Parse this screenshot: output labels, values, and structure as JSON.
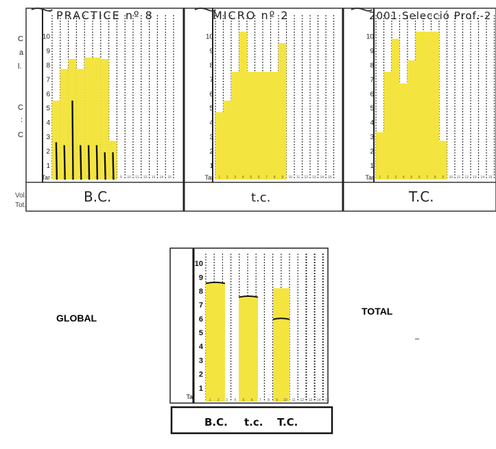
{
  "side_labels": [
    "C",
    "a",
    "l.",
    "C",
    ":",
    "C"
  ],
  "row_labels": [
    "Vol.",
    "Tot."
  ],
  "tick_labels": [
    "1",
    "2",
    "3",
    "4",
    "5",
    "6",
    "7",
    "8",
    "9",
    "10"
  ],
  "axis_label": "Tar",
  "x_tick_labels": [
    "1",
    "2",
    "3",
    "4",
    "5",
    "6",
    "7",
    "8",
    "9",
    "10",
    "11",
    "12",
    "13",
    "14",
    "15"
  ],
  "bottom_label": {
    "global": "GLOBAL",
    "total": "TOTAL"
  },
  "colors": {
    "fill": "#f4e440",
    "marker": "#111111",
    "grid": "#222222"
  },
  "chart_data": [
    {
      "type": "bar",
      "title": "PRACTICE nº 8",
      "footer": "B.C.",
      "ylim": [
        0,
        10.5
      ],
      "x": [
        1,
        2,
        3,
        4,
        5,
        6,
        7,
        8,
        9,
        10,
        11,
        12,
        13,
        14,
        15
      ],
      "series": [
        {
          "values": [
            5.5,
            7.7,
            8.4,
            7.7,
            8.5,
            8.5,
            8.4,
            2.7,
            null,
            null,
            null,
            null,
            null,
            null,
            null
          ]
        },
        {
          "values": [
            2.6,
            2.4,
            5.5,
            2.4,
            2.4,
            2.4,
            1.9,
            1.9,
            null,
            null,
            null,
            null,
            null,
            null,
            null
          ]
        }
      ],
      "grid": true
    },
    {
      "type": "bar",
      "title": "MICRO nº 2",
      "footer": "t.c.",
      "ylim": [
        0,
        10.5
      ],
      "x": [
        1,
        2,
        3,
        4,
        5,
        6,
        7,
        8,
        9,
        10,
        11,
        12,
        13,
        14,
        15
      ],
      "series": [
        {
          "values": [
            4.7,
            5.5,
            7.5,
            10.3,
            7.5,
            7.5,
            7.5,
            7.5,
            9.5,
            null,
            null,
            null,
            null,
            null,
            null
          ]
        }
      ],
      "grid": true
    },
    {
      "type": "bar",
      "title": "2001 Selecció Prof.-2",
      "footer": "T.C.",
      "ylim": [
        0,
        10.5
      ],
      "x": [
        1,
        2,
        3,
        4,
        5,
        6,
        7,
        8,
        9,
        10,
        11,
        12,
        13,
        14,
        15
      ],
      "series": [
        {
          "values": [
            3.3,
            7.5,
            9.8,
            6.7,
            8.3,
            10.3,
            10.3,
            10.3,
            2.7,
            null,
            null,
            null,
            null,
            null,
            null
          ]
        }
      ],
      "grid": true
    },
    {
      "type": "bar",
      "title": "",
      "footer": "",
      "ylim": [
        0,
        10.5
      ],
      "categories": [
        "B.C.",
        "t.c.",
        "T.C."
      ],
      "series": [
        {
          "values": [
            8.6,
            7.6,
            8.2
          ]
        }
      ],
      "markers": [
        8.6,
        7.6,
        6.0
      ],
      "grid": true
    }
  ]
}
